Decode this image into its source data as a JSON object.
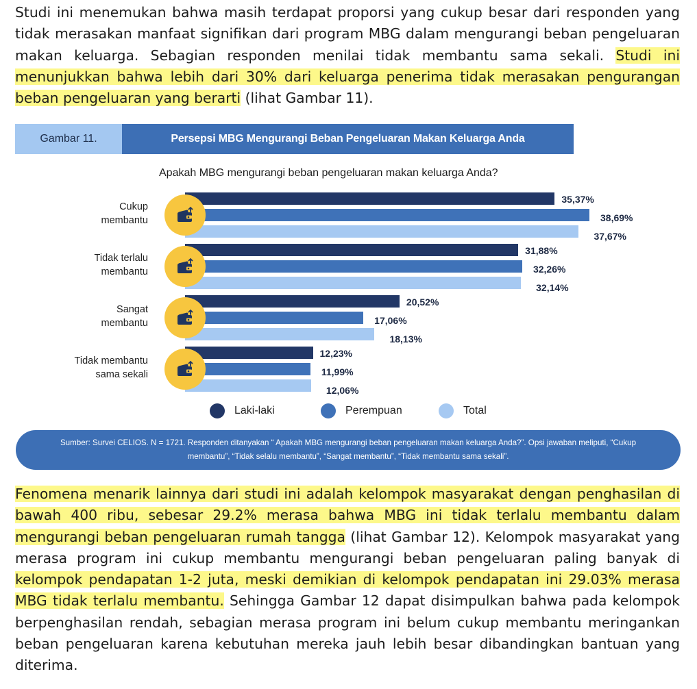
{
  "paragraph1": {
    "plain": "Studi ini menemukan bahwa masih terdapat proporsi yang cukup besar dari responden yang tidak merasakan manfaat signifikan dari program MBG dalam mengurangi beban pengeluaran makan keluarga. Sebagian responden menilai tidak membantu sama sekali. ",
    "highlight": "Studi ini menunjukkan bahwa lebih dari 30% dari keluarga penerima tidak merasakan pengurangan beban pengeluaran yang berarti",
    "tail": " (lihat Gambar 11)."
  },
  "figure": {
    "label": "Gambar 11.",
    "title": "Persepsi MBG Mengurangi Beban Pengeluaran Makan Keluarga Anda",
    "question": "Apakah MBG mengurangi beban pengeluaran makan keluarga Anda?",
    "source": "Sumber: Survei CELIOS. N = 1721. Responden ditanyakan “ Apakah MBG mengurangi beban pengeluaran makan keluarga Anda?”. Opsi jawaban meliputi, “Cukup membantu”, “Tidak selalu membantu”, “Sangat membantu”, “Tidak membantu sama sekali”."
  },
  "chart_data": {
    "type": "bar",
    "orientation": "horizontal",
    "title": "Persepsi MBG Mengurangi Beban Pengeluaran Makan Keluarga Anda",
    "question": "Apakah MBG mengurangi beban pengeluaran makan keluarga Anda?",
    "categories": [
      [
        "Cukup",
        "membantu"
      ],
      [
        "Tidak terlalu",
        "membantu"
      ],
      [
        "Sangat",
        "membantu"
      ],
      [
        "Tidak membantu",
        "sama sekali"
      ]
    ],
    "series": [
      {
        "name": "Laki-laki",
        "color": "#223766",
        "values": [
          35.37,
          31.88,
          20.52,
          12.23
        ],
        "labels": [
          "35,37%",
          "31,88%",
          "20,52%",
          "12,23%"
        ]
      },
      {
        "name": "Perempuan",
        "color": "#3f72b8",
        "values": [
          38.69,
          32.26,
          17.06,
          11.99
        ],
        "labels": [
          "38,69%",
          "32,26%",
          "17,06%",
          "11,99%"
        ]
      },
      {
        "name": "Total",
        "color": "#a6c9f2",
        "values": [
          37.67,
          32.14,
          18.13,
          12.06
        ],
        "labels": [
          "37,67%",
          "32,14%",
          "18,13%",
          "12,06%"
        ]
      }
    ],
    "xlim": [
      0,
      40
    ],
    "grid": false,
    "legend_position": "bottom",
    "icon": "wallet-icon"
  },
  "paragraph2": {
    "highlight1": "Fenomena menarik lainnya dari studi ini adalah kelompok masyarakat dengan penghasilan di bawah 400 ribu, sebesar 29.2% merasa bahwa MBG ini tidak terlalu membantu dalam mengurangi beban pengeluaran rumah tangga",
    "mid": " (lihat Gambar 12). Kelompok masyarakat yang merasa program ini cukup membantu mengurangi beban pengeluaran paling banyak di ",
    "highlight2": "kelompok pendapatan 1-2 juta, meski demikian di kelompok pendapatan ini 29.03% merasa MBG tidak terlalu membantu.",
    "tail": " Sehingga Gambar 12 dapat disimpulkan bahwa pada kelompok berpenghasilan rendah, sebagian merasa program ini belum cukup membantu meringankan beban pengeluaran karena kebutuhan mereka jauh lebih besar dibandingkan bantuan yang diterima."
  }
}
